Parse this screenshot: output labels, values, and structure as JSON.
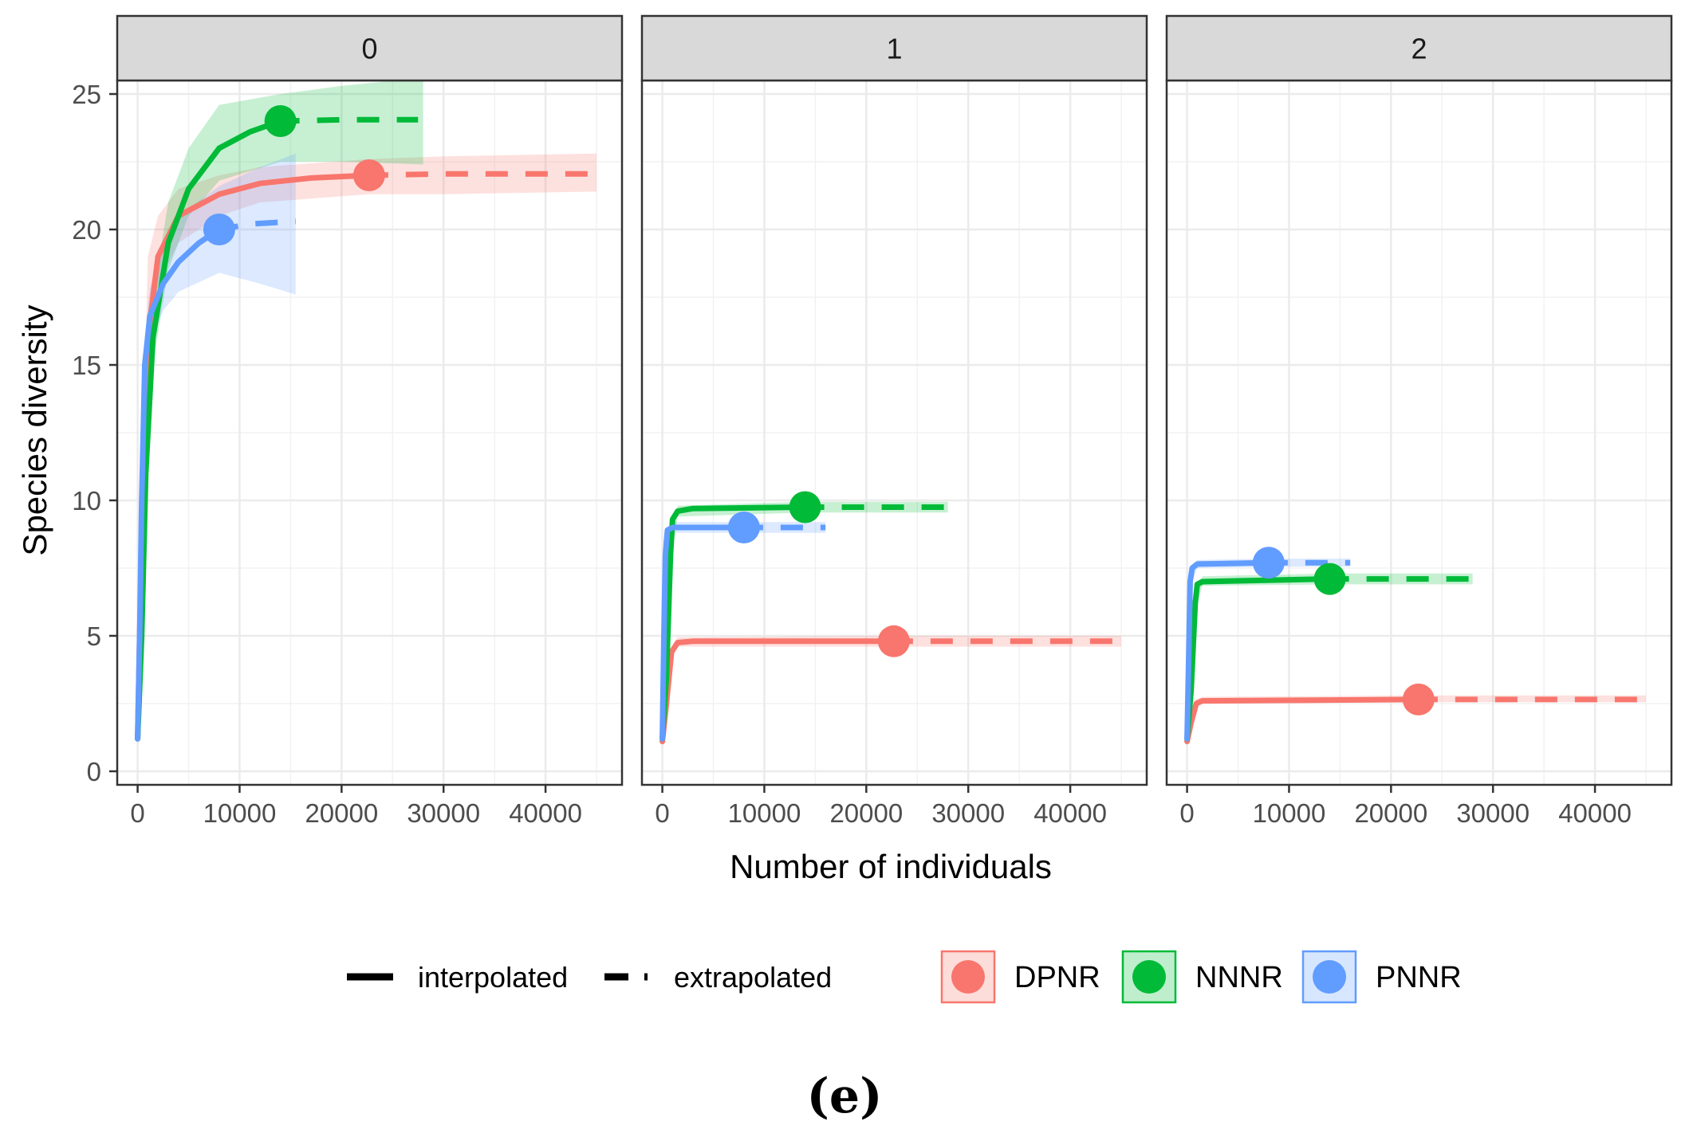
{
  "chart_data": {
    "type": "line",
    "ylabel": "Species diversity",
    "xlabel": "Number of individuals",
    "xlim": [
      -2000,
      47500
    ],
    "ylim": [
      -0.5,
      25.5
    ],
    "x_ticks": [
      0,
      10000,
      20000,
      30000,
      40000
    ],
    "x_tick_labels": [
      "0",
      "10000",
      "20000",
      "30000",
      "40000"
    ],
    "y_ticks": [
      0,
      5,
      10,
      15,
      20,
      25
    ],
    "y_tick_labels": [
      "0",
      "5",
      "10",
      "15",
      "20",
      "25"
    ],
    "grid": true,
    "caption": "(e)",
    "colors": {
      "DPNR": "#f8766d",
      "NNNR": "#00ba38",
      "PNNR": "#619cff"
    },
    "legend": {
      "position": "bottom",
      "line_types": [
        {
          "key": "interpolated",
          "label": "interpolated"
        },
        {
          "key": "extrapolated",
          "label": "extrapolated"
        }
      ],
      "sites": [
        {
          "key": "DPNR",
          "label": "DPNR"
        },
        {
          "key": "NNNR",
          "label": "NNNR"
        },
        {
          "key": "PNNR",
          "label": "PNNR"
        }
      ]
    },
    "panels": [
      {
        "label": "0",
        "series": [
          {
            "name": "DPNR",
            "interpolated": [
              [
                0,
                1.2
              ],
              [
                200,
                5
              ],
              [
                500,
                9.5
              ],
              [
                1000,
                16
              ],
              [
                2000,
                19
              ],
              [
                4000,
                20.5
              ],
              [
                8000,
                21.3
              ],
              [
                12000,
                21.7
              ],
              [
                17000,
                21.9
              ],
              [
                22700,
                22
              ]
            ],
            "extrapolated": [
              [
                22700,
                22
              ],
              [
                30000,
                22.05
              ],
              [
                38000,
                22.05
              ],
              [
                45000,
                22.05
              ]
            ],
            "observed": [
              22700,
              22
            ],
            "band": [
              [
                0,
                1,
                1.4
              ],
              [
                500,
                8,
                11
              ],
              [
                1000,
                15,
                19
              ],
              [
                2000,
                18,
                20.5
              ],
              [
                4000,
                19.5,
                21.5
              ],
              [
                8000,
                20.5,
                22
              ],
              [
                12000,
                21,
                22.3
              ],
              [
                22700,
                21.3,
                22.6
              ],
              [
                30000,
                21.3,
                22.7
              ],
              [
                45000,
                21.4,
                22.8
              ]
            ]
          },
          {
            "name": "NNNR",
            "interpolated": [
              [
                0,
                1.2
              ],
              [
                400,
                5
              ],
              [
                800,
                11
              ],
              [
                1500,
                16
              ],
              [
                3000,
                19.5
              ],
              [
                5000,
                21.5
              ],
              [
                8000,
                23
              ],
              [
                11000,
                23.6
              ],
              [
                14000,
                24
              ]
            ],
            "extrapolated": [
              [
                14000,
                24
              ],
              [
                20000,
                24.05
              ],
              [
                27500,
                24.05
              ]
            ],
            "observed": [
              14000,
              24
            ],
            "band": [
              [
                0,
                1,
                1.4
              ],
              [
                800,
                10,
                12.5
              ],
              [
                1500,
                15,
                17.5
              ],
              [
                3000,
                18.5,
                21
              ],
              [
                5000,
                20.5,
                23
              ],
              [
                8000,
                21.8,
                24.6
              ],
              [
                14000,
                22.5,
                25
              ],
              [
                20000,
                22.5,
                25.3
              ],
              [
                28000,
                22.4,
                25.6
              ]
            ]
          },
          {
            "name": "PNNR",
            "interpolated": [
              [
                0,
                1.2
              ],
              [
                200,
                5
              ],
              [
                400,
                10
              ],
              [
                700,
                15
              ],
              [
                1200,
                16.8
              ],
              [
                2500,
                18
              ],
              [
                4000,
                18.8
              ],
              [
                6000,
                19.5
              ],
              [
                8000,
                20
              ]
            ],
            "extrapolated": [
              [
                8000,
                20
              ],
              [
                11000,
                20.2
              ],
              [
                15500,
                20.3
              ]
            ],
            "observed": [
              8000,
              20
            ],
            "band": [
              [
                0,
                1,
                1.4
              ],
              [
                400,
                9,
                11
              ],
              [
                700,
                14,
                16
              ],
              [
                1200,
                15.8,
                17.8
              ],
              [
                2500,
                17,
                19.5
              ],
              [
                4000,
                17.7,
                20.5
              ],
              [
                8000,
                18.4,
                21.6
              ],
              [
                12000,
                18,
                22.3
              ],
              [
                15500,
                17.6,
                22.8
              ]
            ]
          }
        ]
      },
      {
        "label": "1",
        "series": [
          {
            "name": "DPNR",
            "interpolated": [
              [
                0,
                1.1
              ],
              [
                400,
                2.5
              ],
              [
                900,
                4.4
              ],
              [
                1500,
                4.75
              ],
              [
                3000,
                4.8
              ],
              [
                22700,
                4.8
              ]
            ],
            "extrapolated": [
              [
                22700,
                4.8
              ],
              [
                34000,
                4.8
              ],
              [
                45000,
                4.8
              ]
            ],
            "observed": [
              22700,
              4.8
            ],
            "band": [
              [
                0,
                1,
                1.3
              ],
              [
                900,
                4.2,
                4.6
              ],
              [
                1500,
                4.6,
                4.95
              ],
              [
                22700,
                4.6,
                5
              ],
              [
                45000,
                4.6,
                5
              ]
            ]
          },
          {
            "name": "NNNR",
            "interpolated": [
              [
                0,
                1.2
              ],
              [
                400,
                3.5
              ],
              [
                800,
                8
              ],
              [
                1000,
                9.3
              ],
              [
                1500,
                9.6
              ],
              [
                3000,
                9.7
              ],
              [
                14000,
                9.75
              ]
            ],
            "extrapolated": [
              [
                14000,
                9.75
              ],
              [
                21000,
                9.75
              ],
              [
                28000,
                9.75
              ]
            ],
            "observed": [
              14000,
              9.75
            ],
            "band": [
              [
                0,
                1,
                1.4
              ],
              [
                800,
                7.6,
                8.4
              ],
              [
                1500,
                9.4,
                9.8
              ],
              [
                14000,
                9.55,
                9.95
              ],
              [
                28000,
                9.55,
                9.95
              ]
            ]
          },
          {
            "name": "PNNR",
            "interpolated": [
              [
                0,
                1.2
              ],
              [
                150,
                5
              ],
              [
                300,
                8
              ],
              [
                500,
                8.9
              ],
              [
                1000,
                9
              ],
              [
                8000,
                9
              ]
            ],
            "extrapolated": [
              [
                8000,
                9
              ],
              [
                12000,
                9
              ],
              [
                16000,
                9
              ]
            ],
            "observed": [
              8000,
              9
            ],
            "band": [
              [
                0,
                1,
                1.4
              ],
              [
                300,
                7.7,
                8.3
              ],
              [
                1000,
                8.8,
                9.2
              ],
              [
                8000,
                8.8,
                9.2
              ],
              [
                16000,
                8.8,
                9.2
              ]
            ]
          }
        ]
      },
      {
        "label": "2",
        "series": [
          {
            "name": "DPNR",
            "interpolated": [
              [
                0,
                1.1
              ],
              [
                400,
                1.8
              ],
              [
                900,
                2.5
              ],
              [
                1500,
                2.6
              ],
              [
                22700,
                2.65
              ]
            ],
            "extrapolated": [
              [
                22700,
                2.65
              ],
              [
                34000,
                2.65
              ],
              [
                45000,
                2.65
              ]
            ],
            "observed": [
              22700,
              2.65
            ],
            "band": [
              [
                0,
                1,
                1.3
              ],
              [
                900,
                2.4,
                2.65
              ],
              [
                1500,
                2.5,
                2.75
              ],
              [
                22700,
                2.55,
                2.8
              ],
              [
                45000,
                2.55,
                2.8
              ]
            ]
          },
          {
            "name": "NNNR",
            "interpolated": [
              [
                0,
                1.2
              ],
              [
                400,
                3
              ],
              [
                800,
                6.2
              ],
              [
                1000,
                6.9
              ],
              [
                1500,
                7
              ],
              [
                14000,
                7.1
              ]
            ],
            "extrapolated": [
              [
                14000,
                7.1
              ],
              [
                21000,
                7.1
              ],
              [
                28000,
                7.1
              ]
            ],
            "observed": [
              14000,
              7.1
            ],
            "band": [
              [
                0,
                1,
                1.4
              ],
              [
                800,
                5.9,
                6.5
              ],
              [
                1500,
                6.85,
                7.2
              ],
              [
                14000,
                6.9,
                7.3
              ],
              [
                28000,
                6.9,
                7.3
              ]
            ]
          },
          {
            "name": "PNNR",
            "interpolated": [
              [
                0,
                1.2
              ],
              [
                150,
                4
              ],
              [
                300,
                7
              ],
              [
                500,
                7.5
              ],
              [
                1000,
                7.65
              ],
              [
                8000,
                7.7
              ]
            ],
            "extrapolated": [
              [
                8000,
                7.7
              ],
              [
                12000,
                7.7
              ],
              [
                16000,
                7.7
              ]
            ],
            "observed": [
              8000,
              7.7
            ],
            "band": [
              [
                0,
                1,
                1.4
              ],
              [
                300,
                6.8,
                7.2
              ],
              [
                1000,
                7.5,
                7.8
              ],
              [
                8000,
                7.55,
                7.85
              ],
              [
                16000,
                7.55,
                7.85
              ]
            ]
          }
        ]
      }
    ]
  }
}
